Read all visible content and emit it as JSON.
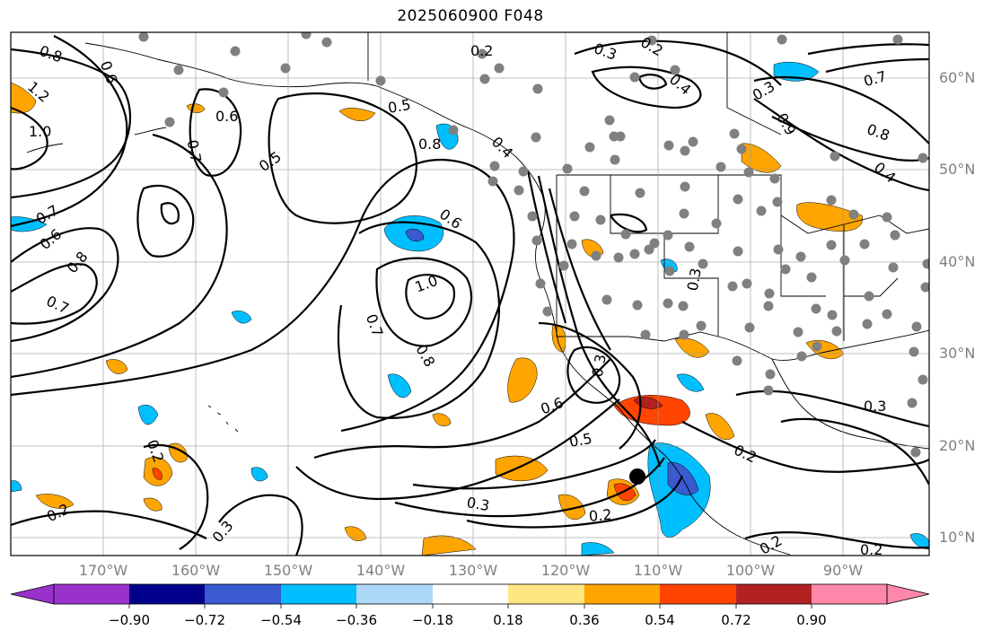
{
  "title": "2025060900 F048",
  "lat_labels": [
    "60°N",
    "50°N",
    "40°N",
    "30°N",
    "20°N",
    "10°N"
  ],
  "lon_labels": [
    "170°W",
    "160°W",
    "150°W",
    "140°W",
    "130°W",
    "120°W",
    "110°W",
    "100°W",
    "90°W"
  ],
  "contour_labels": [
    "0.8",
    "0.6",
    "1.2",
    "1.0",
    "0.6",
    "0.7",
    "0.5",
    "0.5",
    "0.8",
    "0.4",
    "0.2",
    "0.3",
    "0.2",
    "0.4",
    "0.3",
    "0.7",
    "0.9",
    "0.8",
    "0.4",
    "0.7",
    "0.6",
    "0.8",
    "0.7",
    "0.6",
    "1.0",
    "0.7",
    "0.8",
    "0.3",
    "0.3",
    "0.6",
    "0.5",
    "0.3",
    "0.2",
    "0.2",
    "0.2",
    "0.3",
    "0.3",
    "0.2",
    "0.2",
    "0.2"
  ],
  "colorbar": {
    "ticks": [
      "−0.90",
      "−0.72",
      "−0.54",
      "−0.36",
      "−0.18",
      "0.18",
      "0.36",
      "0.54",
      "0.72",
      "0.90"
    ],
    "colors": [
      "#9932cc",
      "#00008b",
      "#3a5bcf",
      "#00bfff",
      "#add8f7",
      "#ffffff",
      "#ffe680",
      "#ffa500",
      "#ff4500",
      "#b22222",
      "#ff88aa"
    ]
  },
  "chart_data": {
    "type": "heatmap",
    "title": "2025060900 F048",
    "xlim": [
      "180°W",
      "80°W"
    ],
    "ylim": [
      "7°N",
      "65°N"
    ],
    "x_ticks": [
      "170°W",
      "160°W",
      "150°W",
      "140°W",
      "130°W",
      "120°W",
      "110°W",
      "100°W",
      "90°W"
    ],
    "y_ticks": [
      "10°N",
      "20°N",
      "30°N",
      "40°N",
      "50°N",
      "60°N"
    ],
    "legend": "bottom colorbar with extend arrows",
    "colorbar_ticks": [
      -0.9,
      -0.72,
      -0.54,
      -0.36,
      -0.18,
      0.18,
      0.36,
      0.54,
      0.72,
      0.9
    ],
    "grid": true
  }
}
